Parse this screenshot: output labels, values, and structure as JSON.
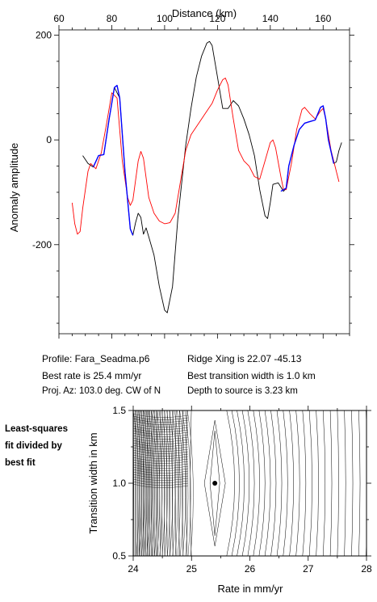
{
  "chart_data": [
    {
      "type": "line",
      "xlabel": "Distance (km)",
      "ylabel": "Anomaly amplitude",
      "xlim": [
        60,
        170
      ],
      "ylim": [
        -370,
        210
      ],
      "x_ticks": [
        60,
        80,
        100,
        120,
        140,
        160
      ],
      "y_ticks": [
        200,
        0,
        -200
      ],
      "x_axis_position": "top",
      "grid": false,
      "series": [
        {
          "color": "#000000",
          "points": [
            [
              69,
              -30
            ],
            [
              71,
              -45
            ],
            [
              73,
              -52
            ],
            [
              75,
              -30
            ],
            [
              77,
              -28
            ],
            [
              79,
              40
            ],
            [
              81,
              100
            ],
            [
              83,
              80
            ],
            [
              85,
              -60
            ],
            [
              87,
              -170
            ],
            [
              88,
              -182
            ],
            [
              89,
              -158
            ],
            [
              90,
              -140
            ],
            [
              91,
              -148
            ],
            [
              92,
              -180
            ],
            [
              93,
              -168
            ],
            [
              94,
              -185
            ],
            [
              96,
              -220
            ],
            [
              98,
              -280
            ],
            [
              100,
              -325
            ],
            [
              101,
              -330
            ],
            [
              103,
              -280
            ],
            [
              105,
              -150
            ],
            [
              108,
              -10
            ],
            [
              110,
              60
            ],
            [
              112,
              120
            ],
            [
              114,
              160
            ],
            [
              116,
              185
            ],
            [
              117,
              188
            ],
            [
              118,
              180
            ],
            [
              120,
              120
            ],
            [
              122,
              60
            ],
            [
              124,
              60
            ],
            [
              126,
              75
            ],
            [
              128,
              65
            ],
            [
              130,
              40
            ],
            [
              132,
              10
            ],
            [
              134,
              -30
            ],
            [
              136,
              -95
            ],
            [
              138,
              -145
            ],
            [
              139,
              -150
            ],
            [
              140,
              -120
            ],
            [
              141,
              -85
            ],
            [
              143,
              -82
            ],
            [
              145,
              -98
            ],
            [
              146,
              -92
            ],
            [
              147,
              -50
            ],
            [
              149,
              -10
            ],
            [
              151,
              20
            ],
            [
              153,
              32
            ],
            [
              155,
              35
            ],
            [
              157,
              38
            ],
            [
              159,
              62
            ],
            [
              160,
              65
            ],
            [
              161,
              40
            ],
            [
              162,
              0
            ],
            [
              164,
              -45
            ],
            [
              165,
              -42
            ],
            [
              166,
              -20
            ],
            [
              167,
              -5
            ]
          ]
        },
        {
          "color": "#ff0000",
          "points": [
            [
              65,
              -120
            ],
            [
              66,
              -160
            ],
            [
              67,
              -180
            ],
            [
              68,
              -175
            ],
            [
              69,
              -130
            ],
            [
              71,
              -60
            ],
            [
              72,
              -45
            ],
            [
              74,
              -55
            ],
            [
              76,
              -25
            ],
            [
              78,
              30
            ],
            [
              80,
              90
            ],
            [
              82,
              80
            ],
            [
              84,
              -40
            ],
            [
              86,
              -110
            ],
            [
              87,
              -125
            ],
            [
              88,
              -115
            ],
            [
              90,
              -40
            ],
            [
              91,
              -22
            ],
            [
              92,
              -35
            ],
            [
              94,
              -110
            ],
            [
              96,
              -140
            ],
            [
              98,
              -155
            ],
            [
              100,
              -160
            ],
            [
              102,
              -158
            ],
            [
              104,
              -140
            ],
            [
              106,
              -80
            ],
            [
              108,
              -20
            ],
            [
              110,
              10
            ],
            [
              114,
              40
            ],
            [
              118,
              70
            ],
            [
              120,
              95
            ],
            [
              122,
              115
            ],
            [
              123,
              118
            ],
            [
              124,
              105
            ],
            [
              126,
              40
            ],
            [
              128,
              -20
            ],
            [
              130,
              -40
            ],
            [
              132,
              -50
            ],
            [
              134,
              -70
            ],
            [
              136,
              -75
            ],
            [
              138,
              -40
            ],
            [
              140,
              -5
            ],
            [
              141,
              0
            ],
            [
              142,
              -15
            ],
            [
              144,
              -70
            ],
            [
              145,
              -95
            ],
            [
              146,
              -95
            ],
            [
              148,
              -45
            ],
            [
              150,
              20
            ],
            [
              152,
              58
            ],
            [
              153,
              62
            ],
            [
              155,
              50
            ],
            [
              157,
              40
            ],
            [
              159,
              55
            ],
            [
              160,
              60
            ],
            [
              161,
              40
            ],
            [
              163,
              -20
            ],
            [
              165,
              -60
            ],
            [
              166,
              -80
            ]
          ]
        },
        {
          "color": "#0000ff",
          "points": [
            [
              73,
              -52
            ],
            [
              75,
              -30
            ],
            [
              77,
              -28
            ],
            [
              79,
              40
            ],
            [
              81,
              100
            ],
            [
              82,
              104
            ],
            [
              83,
              80
            ],
            [
              85,
              -60
            ],
            [
              87,
              -170
            ],
            [
              88,
              -182
            ],
            [
              144,
              -98
            ],
            [
              146,
              -92
            ],
            [
              147,
              -50
            ],
            [
              149,
              -10
            ],
            [
              151,
              20
            ],
            [
              153,
              32
            ],
            [
              155,
              35
            ],
            [
              157,
              38
            ],
            [
              159,
              62
            ],
            [
              160,
              65
            ],
            [
              161,
              40
            ],
            [
              162,
              0
            ],
            [
              164,
              -45
            ]
          ]
        }
      ]
    },
    {
      "type": "contour",
      "xlabel": "Rate in mm/yr",
      "ylabel": "Transition width in km",
      "xlim": [
        24,
        28
      ],
      "ylim": [
        0.5,
        1.5
      ],
      "x_ticks": [
        24,
        25,
        26,
        27,
        28
      ],
      "y_ticks": [
        0.5,
        1.0,
        1.5
      ],
      "best_fit_point": [
        25.4,
        1.0
      ],
      "grid": false
    }
  ],
  "info": {
    "profile": "Profile: Fara_Seadma.p6",
    "ridge_xing": "Ridge Xing is 22.07 -45.13",
    "best_rate": "Best rate is 25.4 mm/yr",
    "best_width": "Best transition width is 1.0 km",
    "proj_az": "Proj. Az: 103.0 deg. CW of N",
    "depth": "Depth to source is   3.23 km"
  },
  "side_note": [
    "Least-squares",
    "fit divided by",
    "best fit"
  ]
}
